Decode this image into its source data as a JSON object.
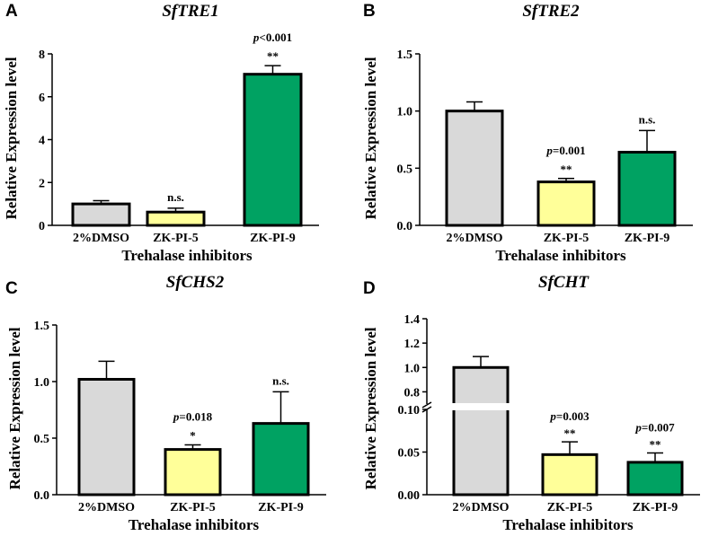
{
  "colors": {
    "DMSO": "#d9d9d9",
    "ZK-PI-5": "#ffff99",
    "ZK-PI-9": "#00a262"
  },
  "chart_data": [
    {
      "type": "bar",
      "panel": "A",
      "title": "SfTRE1",
      "xlabel": "Trehalase inhibitors",
      "ylabel": "Relative Expression level",
      "categories": [
        "2%DMSO",
        "ZK-PI-5",
        "ZK-PI-9"
      ],
      "values": [
        1.0,
        0.62,
        7.05
      ],
      "errors": [
        0.15,
        0.18,
        0.4
      ],
      "ylim": [
        0,
        8
      ],
      "yticks": [
        0,
        2,
        4,
        6,
        8
      ],
      "ytick_labels": [
        "0",
        "2",
        "4",
        "6",
        "8"
      ],
      "annotations": [
        {
          "index": 1,
          "pvalue": "",
          "sig": "n.s."
        },
        {
          "index": 2,
          "pvalue": "p<0.001",
          "sig": "**"
        }
      ]
    },
    {
      "type": "bar",
      "panel": "B",
      "title": "SfTRE2",
      "xlabel": "Trehalase inhibitors",
      "ylabel": "Relative Expression level",
      "categories": [
        "2%DMSO",
        "ZK-PI-5",
        "ZK-PI-9"
      ],
      "values": [
        1.0,
        0.38,
        0.64
      ],
      "errors": [
        0.08,
        0.03,
        0.19
      ],
      "ylim": [
        0,
        1.5
      ],
      "yticks": [
        0,
        0.5,
        1.0,
        1.5
      ],
      "ytick_labels": [
        "0.0",
        "0.5",
        "1.0",
        "1.5"
      ],
      "annotations": [
        {
          "index": 1,
          "pvalue": "p=0.001",
          "sig": "**"
        },
        {
          "index": 2,
          "pvalue": "",
          "sig": "n.s."
        }
      ]
    },
    {
      "type": "bar",
      "panel": "C",
      "title": "SfCHS2",
      "xlabel": "Trehalase inhibitors",
      "ylabel": "Relative Expression level",
      "categories": [
        "2%DMSO",
        "ZK-PI-5",
        "ZK-PI-9"
      ],
      "values": [
        1.02,
        0.4,
        0.63
      ],
      "errors": [
        0.16,
        0.04,
        0.28
      ],
      "ylim": [
        0,
        1.5
      ],
      "yticks": [
        0,
        0.5,
        1.0,
        1.5
      ],
      "ytick_labels": [
        "0.0",
        "0.5",
        "1.0",
        "1.5"
      ],
      "annotations": [
        {
          "index": 1,
          "pvalue": "p=0.018",
          "sig": "*"
        },
        {
          "index": 2,
          "pvalue": "",
          "sig": "n.s."
        }
      ]
    },
    {
      "type": "bar",
      "panel": "D",
      "title": "SfCHT",
      "xlabel": "Trehalase inhibitors",
      "ylabel": "Relative Expression level",
      "categories": [
        "2%DMSO",
        "ZK-PI-5",
        "ZK-PI-9"
      ],
      "values": [
        1.0,
        0.047,
        0.038
      ],
      "errors": [
        0.09,
        0.015,
        0.011
      ],
      "axis_break": {
        "lower": [
          0,
          0.1
        ],
        "upper": [
          0.7,
          1.4
        ]
      },
      "yticks_lower": [
        0,
        0.05,
        0.1
      ],
      "ytick_labels_lower": [
        "0.00",
        "0.05",
        "0.10"
      ],
      "yticks_upper": [
        0.8,
        1.0,
        1.2,
        1.4
      ],
      "ytick_labels_upper": [
        "0.8",
        "1.0",
        "1.2",
        "1.4"
      ],
      "annotations": [
        {
          "index": 1,
          "pvalue": "p=0.003",
          "sig": "**"
        },
        {
          "index": 2,
          "pvalue": "p=0.007",
          "sig": "**"
        }
      ]
    }
  ]
}
